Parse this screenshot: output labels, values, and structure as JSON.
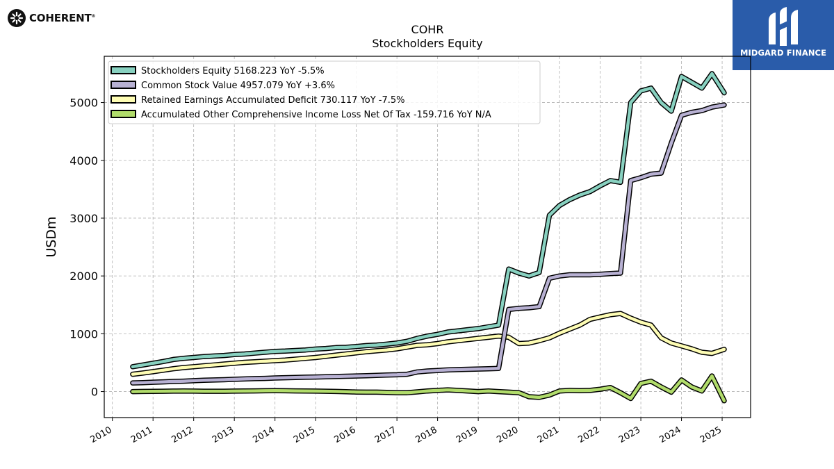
{
  "branding": {
    "left_logo_text": "COHERENT",
    "left_logo_mark": "®",
    "right_logo_text": "MIDGARD FINANCE",
    "right_bg_color": "#2a5caa"
  },
  "chart_data": {
    "type": "line",
    "title": "COHR",
    "subtitle": "Stockholders  Equity",
    "ylabel": "USDm",
    "xlabel": "",
    "xlim": [
      2009.8,
      2025.7
    ],
    "ylim": [
      -450,
      5800
    ],
    "yticks": [
      0,
      1000,
      2000,
      3000,
      4000,
      5000
    ],
    "xticks": [
      "2010",
      "2011",
      "2012",
      "2013",
      "2014",
      "2015",
      "2016",
      "2017",
      "2018",
      "2019",
      "2020",
      "2021",
      "2022",
      "2023",
      "2024",
      "2025"
    ],
    "grid": true,
    "legend_position": "top-left",
    "x": [
      2010.5,
      2010.75,
      2011.0,
      2011.25,
      2011.5,
      2011.75,
      2012.0,
      2012.25,
      2012.5,
      2012.75,
      2013.0,
      2013.25,
      2013.5,
      2013.75,
      2014.0,
      2014.25,
      2014.5,
      2014.75,
      2015.0,
      2015.25,
      2015.5,
      2015.75,
      2016.0,
      2016.25,
      2016.5,
      2016.75,
      2017.0,
      2017.25,
      2017.5,
      2017.75,
      2018.0,
      2018.25,
      2018.5,
      2018.75,
      2019.0,
      2019.25,
      2019.5,
      2019.75,
      2020.0,
      2020.25,
      2020.5,
      2020.75,
      2021.0,
      2021.25,
      2021.5,
      2021.75,
      2022.0,
      2022.25,
      2022.5,
      2022.75,
      2023.0,
      2023.25,
      2023.5,
      2023.75,
      2024.0,
      2024.25,
      2024.5,
      2024.75,
      2025.05
    ],
    "series": [
      {
        "name": "Stockholders Equity  5168.223 YoY -5.5%",
        "color": "#88d1c0",
        "values": [
          430,
          460,
          490,
          520,
          555,
          575,
          590,
          605,
          615,
          625,
          640,
          650,
          665,
          680,
          695,
          700,
          710,
          720,
          735,
          745,
          760,
          765,
          780,
          795,
          805,
          820,
          840,
          870,
          920,
          960,
          990,
          1030,
          1050,
          1070,
          1090,
          1120,
          1150,
          2120,
          2050,
          2000,
          2060,
          3050,
          3220,
          3320,
          3400,
          3460,
          3560,
          3650,
          3620,
          5000,
          5200,
          5250,
          5000,
          4850,
          5450,
          5350,
          5250,
          5500,
          5168
        ]
      },
      {
        "name": "Common Stock Value  4957.079 YoY +3.6%",
        "color": "#b8b1d3",
        "values": [
          150,
          155,
          162,
          168,
          175,
          180,
          188,
          195,
          200,
          205,
          212,
          218,
          224,
          228,
          235,
          240,
          245,
          248,
          252,
          256,
          260,
          265,
          270,
          275,
          280,
          285,
          290,
          300,
          340,
          355,
          365,
          375,
          380,
          385,
          390,
          395,
          400,
          1420,
          1440,
          1450,
          1470,
          1960,
          2000,
          2020,
          2020,
          2020,
          2030,
          2040,
          2050,
          3650,
          3700,
          3760,
          3780,
          4300,
          4780,
          4830,
          4860,
          4920,
          4957
        ]
      },
      {
        "name": "Retained Earnings Accumulated Deficit  730.117 YoY -7.5%",
        "color": "#fefdb4",
        "values": [
          300,
          320,
          345,
          370,
          395,
          415,
          430,
          445,
          460,
          475,
          490,
          505,
          515,
          525,
          535,
          545,
          560,
          575,
          590,
          610,
          630,
          650,
          670,
          690,
          705,
          720,
          740,
          770,
          800,
          810,
          830,
          860,
          880,
          900,
          920,
          940,
          960,
          940,
          830,
          840,
          880,
          930,
          1010,
          1080,
          1150,
          1250,
          1290,
          1330,
          1350,
          1270,
          1200,
          1150,
          930,
          840,
          790,
          740,
          680,
          660,
          730
        ]
      },
      {
        "name": "Accumulated Other Comprehensive Income Loss Net Of Tax  -159.716 YoY N/A",
        "color": "#b1dc6b",
        "values": [
          0,
          2,
          4,
          6,
          8,
          10,
          8,
          6,
          5,
          6,
          8,
          10,
          12,
          14,
          15,
          14,
          12,
          10,
          8,
          5,
          2,
          -2,
          -8,
          -10,
          -10,
          -15,
          -20,
          -20,
          -5,
          10,
          20,
          30,
          20,
          10,
          0,
          10,
          0,
          -10,
          -20,
          -90,
          -100,
          -60,
          10,
          20,
          15,
          20,
          40,
          70,
          -20,
          -120,
          140,
          180,
          80,
          -10,
          200,
          80,
          10,
          270,
          -159
        ]
      }
    ]
  }
}
